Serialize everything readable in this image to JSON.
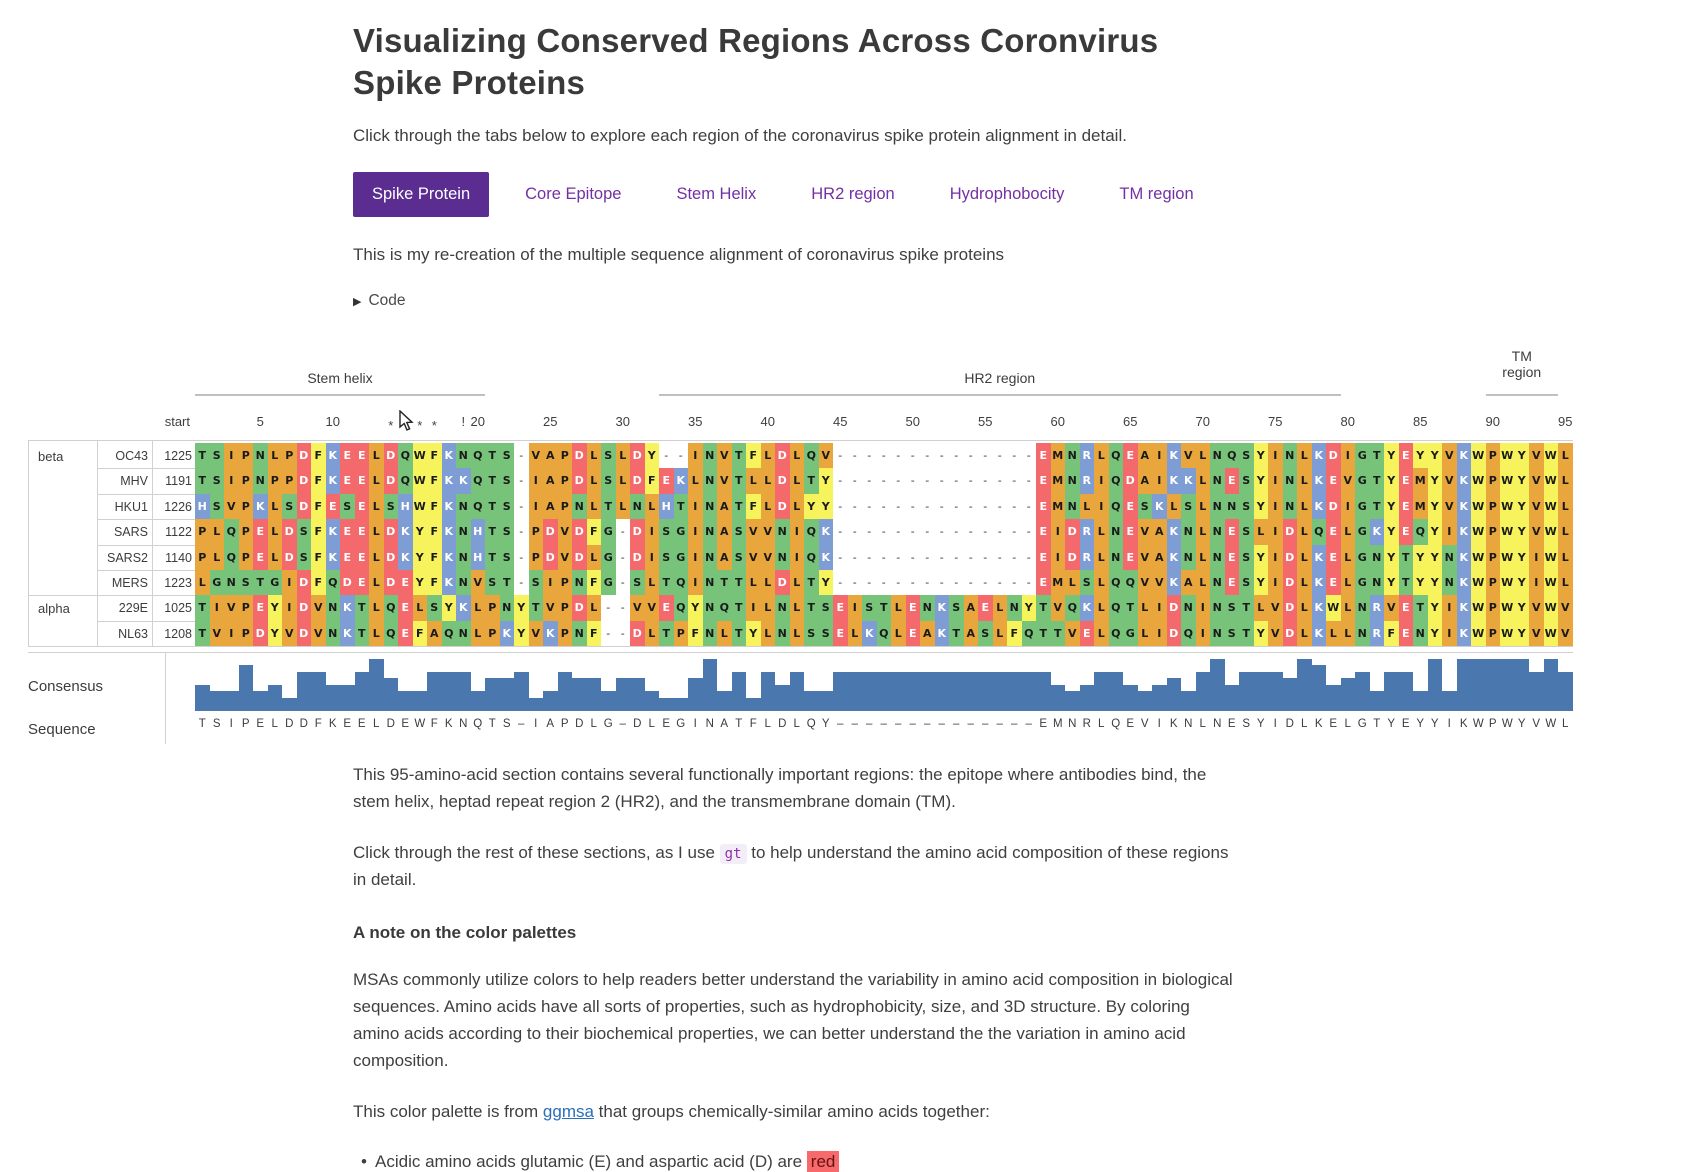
{
  "header": {
    "title": "Visualizing Conserved Regions Across Coronvirus Spike Proteins",
    "intro": "Click through the tabs below to explore each region of the coronavirus spike protein alignment in detail.",
    "tabs": [
      {
        "label": "Spike Protein",
        "active": true
      },
      {
        "label": "Core Epitope",
        "active": false
      },
      {
        "label": "Stem Helix",
        "active": false
      },
      {
        "label": "HR2 region",
        "active": false
      },
      {
        "label": "Hydrophobocity",
        "active": false
      },
      {
        "label": "TM region",
        "active": false
      }
    ],
    "description": "This is my re-creation of the multiple sequence alignment of coronavirus spike proteins",
    "code_toggle": "Code"
  },
  "msa": {
    "regions": [
      {
        "label": "Stem helix",
        "start": 1,
        "end": 20,
        "two_line": false
      },
      {
        "label": "HR2 region",
        "start": 33,
        "end": 79,
        "two_line": false
      },
      {
        "label": "TM region",
        "start": 90,
        "end": 94,
        "two_line": true
      }
    ],
    "axis": {
      "start_label": "start",
      "ticks": [
        5,
        10,
        20,
        25,
        30,
        35,
        40,
        45,
        50,
        55,
        60,
        65,
        70,
        75,
        80,
        85,
        90,
        95
      ],
      "marks": [
        {
          "col": 14,
          "char": "*"
        },
        {
          "col": 16,
          "char": "*"
        },
        {
          "col": 17,
          "char": "*"
        },
        {
          "col": 19,
          "char": "!"
        }
      ]
    },
    "groups": [
      {
        "name": "beta",
        "rows": [
          "OC43",
          "MHV",
          "HKU1",
          "SARS",
          "SARS2",
          "MERS"
        ]
      },
      {
        "name": "alpha",
        "rows": [
          "229E",
          "NL63"
        ]
      }
    ],
    "rows": [
      {
        "name": "OC43",
        "start": 1225,
        "seq": "TSIPNLPDFKEELDQWFKNQTS-VAPDLSLDY--INVTFLDLQV--------------EMNRLQEAIKVLNQSYINLKDIGTYEYYVKWPWYVWL"
      },
      {
        "name": "MHV",
        "start": 1191,
        "seq": "TSIPNPPDFKEELDQWFKKQTS-IAPDLSLDFEKLNVTLLDLTY--------------EMNRIQDAIKKLNESYINLKEVGTYEMYVKWPWYVWL"
      },
      {
        "name": "HKU1",
        "start": 1226,
        "seq": "HSVPKLSDFESELSHWFKNQTS-IAPNLTLNLHTINATFLDLYY--------------EMNLIQESKLSLNNSYINLKDIGTYEMYVKWPWYVWL"
      },
      {
        "name": "SARS",
        "start": 1122,
        "seq": "PLQPELDSFKEELDKYFKNHTS-PDVDFG-DISGINASVVNIQK--------------EIDRLNEVAKNLNESLIDLQELGKYEQYIKWPWYVWL"
      },
      {
        "name": "SARS2",
        "start": 1140,
        "seq": "PLQPELDSFKEELDKYFKNHTS-PDVDLG-DISGINASVVNIQK--------------EIDRLNEVAKNLNESYIDLKELGNYTYYNKWPWYIWL"
      },
      {
        "name": "MERS",
        "start": 1223,
        "seq": "LGNSTGIDFQDELDEYFKNVST-SIPNFG-SLTQINTTLLDLTY--------------EMLSLQQVVKALNESYIDLKELGNYTYYNKWPWYIWL"
      },
      {
        "name": "229E",
        "start": 1025,
        "seq": "TIVPEYIDVNKTLQELSYKLPNYTVPDL--VVEQYNQTILNLTSEISTLENKSAELNYTVQKLQTLIDNINSTLVDLKWLNRVETYIKWPWYVWV"
      },
      {
        "name": "NL63",
        "start": 1208,
        "seq": "TVIPDYVDVNKTLQEFAQNLPKYVKPNF--DLTPFNLTYLNLSSELKQLEAKTASLFQTTVELQGLIDQINSTYVDLKLLNRFENYIKWPWYVWV"
      }
    ],
    "consensus": {
      "label": "Consensus",
      "bar_color": "#4a77ad"
    },
    "sequence": {
      "label": "Sequence",
      "value": "TSIPELDDFKEELDEWFKNQTS-IAPDLG-DLEGINATFLDLQY--------------EMNRLQEVIKNLNESYIDLKELGTYEYYIKWPWYVWL"
    },
    "palette": {
      "hydrophobic": "#e9a63c",
      "polar": "#77c379",
      "acidic": "#f4696b",
      "basic": "#7d9dd4",
      "aromatic": "#f7f35c"
    },
    "aa_classes": {
      "A": "hydrophobic",
      "I": "hydrophobic",
      "L": "hydrophobic",
      "M": "hydrophobic",
      "P": "hydrophobic",
      "V": "hydrophobic",
      "S": "polar",
      "T": "polar",
      "N": "polar",
      "Q": "polar",
      "G": "polar",
      "C": "polar",
      "D": "acidic",
      "E": "acidic",
      "K": "basic",
      "R": "basic",
      "H": "basic",
      "F": "aromatic",
      "W": "aromatic",
      "Y": "aromatic"
    },
    "white_letter_aas": [
      "D",
      "E",
      "K",
      "R",
      "H"
    ]
  },
  "body": {
    "para1": "This 95-amino-acid section contains several functionally important regions: the epitope where antibodies bind, the stem helix, heptad repeat region 2 (HR2), and the transmembrane domain (TM).",
    "para2_pre": "Click through the rest of these sections, as I use ",
    "para2_code": "gt",
    "para2_post": " to help understand the amino acid composition of these regions in detail.",
    "note_heading": "A note on the color palettes",
    "para3": "MSAs commonly utilize colors to help readers better understand the variability in amino acid composition in biological sequences. Amino acids have all sorts of properties, such as hydrophobicity, size, and 3D structure. By coloring amino acids according to their biochemical properties, we can better understand the the variation in amino acid composition.",
    "para4_pre": "This color palette is from ",
    "para4_link": "ggmsa",
    "para4_post": " that groups chemically-similar amino acids together:",
    "bullet_pre": "Acidic amino acids glutamic (E) and aspartic acid (D) are ",
    "bullet_chip": "red"
  }
}
